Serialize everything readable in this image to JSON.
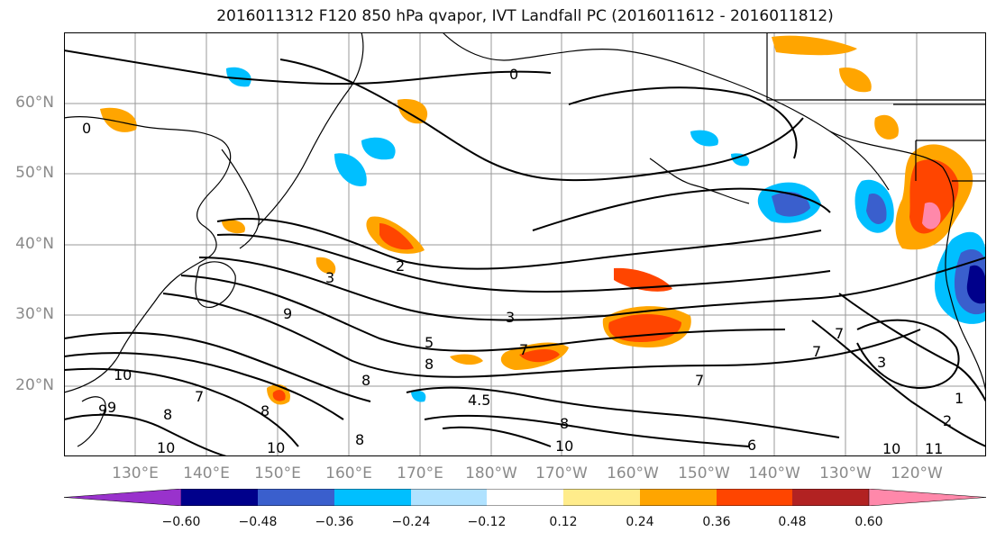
{
  "title": "2016011312 F120 850 hPa qvapor, IVT Landfall PC (2016011612 - 2016011812)",
  "lat_labels": [
    "60°N",
    "50°N",
    "40°N",
    "30°N",
    "20°N"
  ],
  "lon_labels": [
    "130°E",
    "140°E",
    "150°E",
    "160°E",
    "170°E",
    "180°W",
    "170°W",
    "160°W",
    "150°W",
    "140°W",
    "130°W",
    "120°W"
  ],
  "contour_labels": [
    "0",
    "0",
    "2",
    "3",
    "3",
    "5",
    "7",
    "7",
    "8",
    "9",
    "10",
    "9",
    "8",
    "7",
    "8",
    "10",
    "10",
    "8",
    "4.5",
    "8",
    "10",
    "8",
    "7",
    "6",
    "10",
    "11",
    "2",
    "1",
    "3",
    "7",
    "9"
  ],
  "colorbar": {
    "ticks": [
      "−0.60",
      "−0.48",
      "−0.36",
      "−0.24",
      "−0.12",
      "0.12",
      "0.24",
      "0.36",
      "0.48",
      "0.60"
    ],
    "colors": [
      "#9932cc",
      "#00008b",
      "#3a5fcd",
      "#00bfff",
      "#b0e2ff",
      "#ffffff",
      "#ffec8b",
      "#ffa500",
      "#ff4500",
      "#b22222",
      "#ff88aa"
    ]
  }
}
